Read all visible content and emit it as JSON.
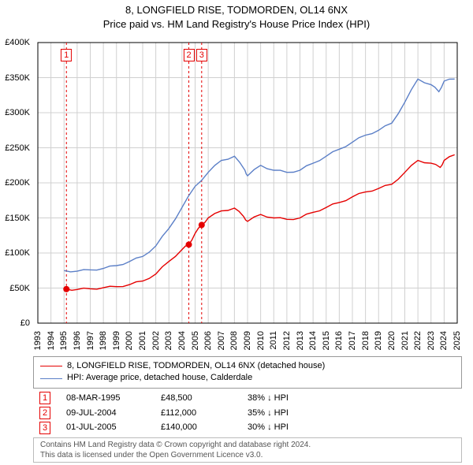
{
  "title_line1": "8, LONGFIELD RISE, TODMORDEN, OL14 6NX",
  "title_line2": "Price paid vs. HM Land Registry's House Price Index (HPI)",
  "chart": {
    "type": "line",
    "background_color": "#ffffff",
    "grid_color": "#d0d0d0",
    "axis_color": "#000000",
    "title_fontsize": 13,
    "tick_fontsize": 11,
    "x": {
      "min": 1993,
      "max": 2025,
      "ticks": [
        1993,
        1994,
        1995,
        1996,
        1997,
        1998,
        1999,
        2000,
        2001,
        2002,
        2003,
        2004,
        2005,
        2006,
        2007,
        2008,
        2009,
        2010,
        2011,
        2012,
        2013,
        2014,
        2015,
        2016,
        2017,
        2018,
        2019,
        2020,
        2021,
        2022,
        2023,
        2024,
        2025
      ]
    },
    "y": {
      "min": 0,
      "max": 400000,
      "ticks": [
        0,
        50000,
        100000,
        150000,
        200000,
        250000,
        300000,
        350000,
        400000
      ],
      "tick_labels": [
        "£0",
        "£50K",
        "£100K",
        "£150K",
        "£200K",
        "£250K",
        "£300K",
        "£350K",
        "£400K"
      ]
    },
    "sale_markers": [
      {
        "n": "1",
        "x": 1995.18,
        "y": 48500
      },
      {
        "n": "2",
        "x": 2004.52,
        "y": 112000
      },
      {
        "n": "3",
        "x": 2005.5,
        "y": 140000
      }
    ],
    "marker_line_color": "#e50000",
    "marker_line_dash": "3,3",
    "marker_dot_color": "#e50000",
    "marker_dot_radius": 4,
    "series": [
      {
        "name": "property",
        "label": "8, LONGFIELD RISE, TODMORDEN, OL14 6NX (detached house)",
        "color": "#e50000",
        "line_width": 1.4,
        "data": [
          [
            1995.18,
            48500
          ],
          [
            1996,
            48000
          ],
          [
            1997,
            49000
          ],
          [
            1998,
            50500
          ],
          [
            1999,
            52000
          ],
          [
            2000,
            55000
          ],
          [
            2001,
            60000
          ],
          [
            2002,
            70000
          ],
          [
            2003,
            88000
          ],
          [
            2004,
            105000
          ],
          [
            2004.52,
            112000
          ],
          [
            2005,
            128000
          ],
          [
            2005.5,
            140000
          ],
          [
            2006,
            150000
          ],
          [
            2007,
            160000
          ],
          [
            2008,
            164000
          ],
          [
            2008.7,
            152000
          ],
          [
            2009,
            145000
          ],
          [
            2010,
            155000
          ],
          [
            2011,
            150000
          ],
          [
            2012,
            148000
          ],
          [
            2013,
            150000
          ],
          [
            2014,
            158000
          ],
          [
            2015,
            165000
          ],
          [
            2016,
            172000
          ],
          [
            2017,
            180000
          ],
          [
            2018,
            187000
          ],
          [
            2019,
            192000
          ],
          [
            2020,
            198000
          ],
          [
            2021,
            215000
          ],
          [
            2022,
            232000
          ],
          [
            2023,
            228000
          ],
          [
            2023.7,
            222000
          ],
          [
            2024,
            232000
          ],
          [
            2024.8,
            240000
          ]
        ]
      },
      {
        "name": "hpi",
        "label": "HPI: Average price, detached house, Calderdale",
        "color": "#5b7fc7",
        "line_width": 1.4,
        "data": [
          [
            1995,
            75000
          ],
          [
            1996,
            74000
          ],
          [
            1997,
            76000
          ],
          [
            1998,
            78000
          ],
          [
            1999,
            82000
          ],
          [
            2000,
            88000
          ],
          [
            2001,
            95000
          ],
          [
            2002,
            110000
          ],
          [
            2003,
            135000
          ],
          [
            2004,
            165000
          ],
          [
            2005,
            195000
          ],
          [
            2006,
            215000
          ],
          [
            2007,
            232000
          ],
          [
            2008,
            238000
          ],
          [
            2008.8,
            218000
          ],
          [
            2009,
            210000
          ],
          [
            2010,
            225000
          ],
          [
            2011,
            218000
          ],
          [
            2012,
            215000
          ],
          [
            2013,
            218000
          ],
          [
            2014,
            228000
          ],
          [
            2015,
            238000
          ],
          [
            2016,
            248000
          ],
          [
            2017,
            258000
          ],
          [
            2018,
            268000
          ],
          [
            2019,
            275000
          ],
          [
            2020,
            285000
          ],
          [
            2021,
            315000
          ],
          [
            2022,
            348000
          ],
          [
            2023,
            340000
          ],
          [
            2023.6,
            330000
          ],
          [
            2024,
            345000
          ],
          [
            2024.8,
            348000
          ]
        ]
      }
    ]
  },
  "legend_items": [
    {
      "label": "8, LONGFIELD RISE, TODMORDEN, OL14 6NX (detached house)",
      "color": "#e50000"
    },
    {
      "label": "HPI: Average price, detached house, Calderdale",
      "color": "#5b7fc7"
    }
  ],
  "sales": [
    {
      "n": "1",
      "date": "08-MAR-1995",
      "price": "£48,500",
      "delta": "38% ↓ HPI"
    },
    {
      "n": "2",
      "date": "09-JUL-2004",
      "price": "£112,000",
      "delta": "35% ↓ HPI"
    },
    {
      "n": "3",
      "date": "01-JUL-2005",
      "price": "£140,000",
      "delta": "30% ↓ HPI"
    }
  ],
  "footer_line1": "Contains HM Land Registry data © Crown copyright and database right 2024.",
  "footer_line2": "This data is licensed under the Open Government Licence v3.0."
}
